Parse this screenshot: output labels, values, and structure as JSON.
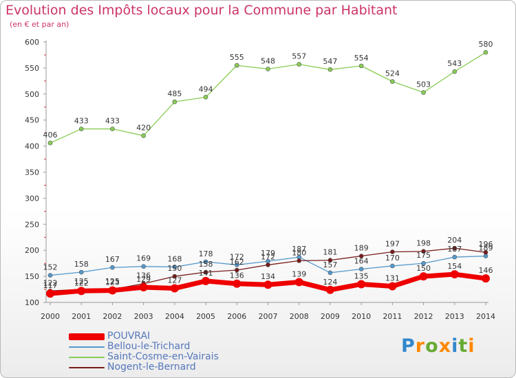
{
  "title": "Evolution des Impôts locaux pour la Commune par Habitant",
  "subtitle": "(en € et par an)",
  "logo": {
    "text": "Proxiti",
    "letter_colors": [
      "#3388cc",
      "#ff8800",
      "#66aa33",
      "#ff8800",
      "#3388cc",
      "#66aa33",
      "#ff8800"
    ]
  },
  "chart_data": {
    "type": "line",
    "title": "Evolution des Impôts locaux pour la Commune par Habitant",
    "subtitle": "(en € et par an)",
    "xlabel": "",
    "ylabel": "",
    "ylim": [
      100,
      600
    ],
    "y_ticks": [
      100,
      150,
      200,
      250,
      300,
      350,
      400,
      450,
      500,
      550,
      600
    ],
    "grid": false,
    "legend_position": "bottom-left",
    "categories": [
      "2000",
      "2001",
      "2002",
      "2003",
      "2004",
      "2005",
      "2006",
      "2007",
      "2008",
      "2009",
      "2010",
      "2011",
      "2012",
      "2013",
      "2014"
    ],
    "series": [
      {
        "name": "POUVRAI",
        "color": "#ee0000",
        "values": [
          117,
          122,
          123,
          129,
          127,
          141,
          136,
          134,
          139,
          124,
          135,
          131,
          150,
          154,
          146
        ]
      },
      {
        "name": "Bellou-le-Trichard",
        "color": "#5599cc",
        "values": [
          152,
          158,
          167,
          169,
          168,
          178,
          172,
          179,
          187,
          157,
          164,
          170,
          175,
          187,
          189
        ]
      },
      {
        "name": "Saint-Cosme-en-Vairais",
        "color": "#88cc55",
        "values": [
          406,
          433,
          433,
          420,
          485,
          494,
          555,
          548,
          557,
          547,
          554,
          524,
          503,
          543,
          580
        ]
      },
      {
        "name": "Nogent-le-Bernard",
        "color": "#771a1a",
        "values": [
          122,
          125,
          125,
          136,
          150,
          158,
          162,
          172,
          180,
          181,
          189,
          197,
          198,
          204,
          196
        ]
      }
    ]
  }
}
